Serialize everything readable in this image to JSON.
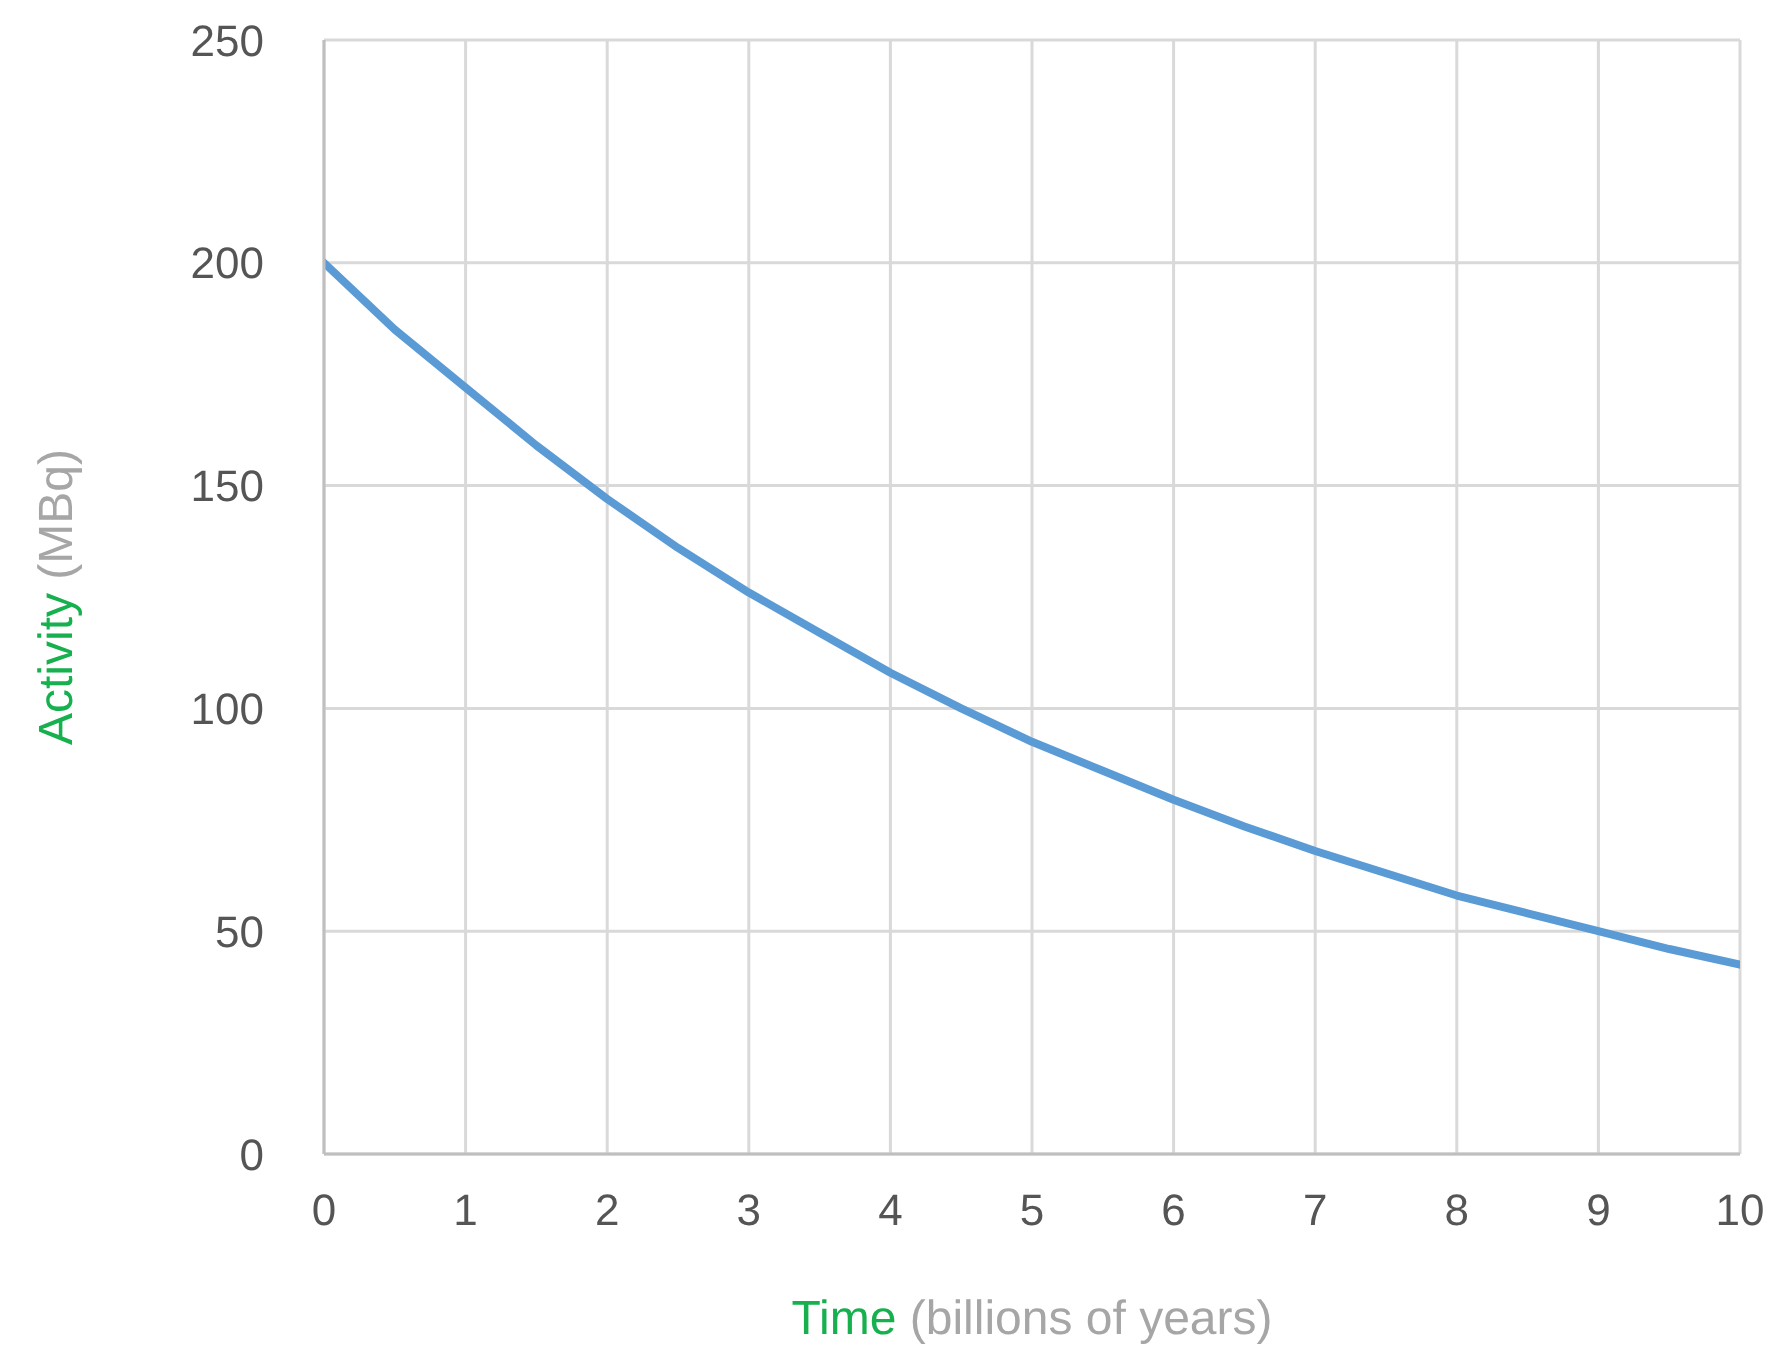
{
  "chart_data": {
    "type": "line",
    "xlabel": "Time (billions of years)",
    "ylabel": "Activity (MBq)",
    "x": [
      0,
      0.5,
      1,
      1.5,
      2,
      2.5,
      3,
      3.5,
      4,
      4.5,
      5,
      5.5,
      6,
      6.5,
      7,
      7.5,
      8,
      8.5,
      9,
      9.5,
      10
    ],
    "series": [
      {
        "color": "#5b9bd5",
        "values": [
          200,
          185,
          172,
          159,
          147,
          136,
          126,
          117,
          108,
          100,
          92.5,
          86,
          79.5,
          73.5,
          68,
          63,
          58,
          54,
          50,
          46,
          42.5
        ]
      }
    ],
    "xlim": [
      0,
      10
    ],
    "xticks": [
      0,
      1,
      2,
      3,
      4,
      5,
      6,
      7,
      8,
      9,
      10
    ],
    "ylim": [
      0,
      250
    ],
    "yticks": [
      0,
      50,
      100,
      150,
      200,
      250
    ],
    "grid": true,
    "marker": "none",
    "line_style": "solid"
  }
}
